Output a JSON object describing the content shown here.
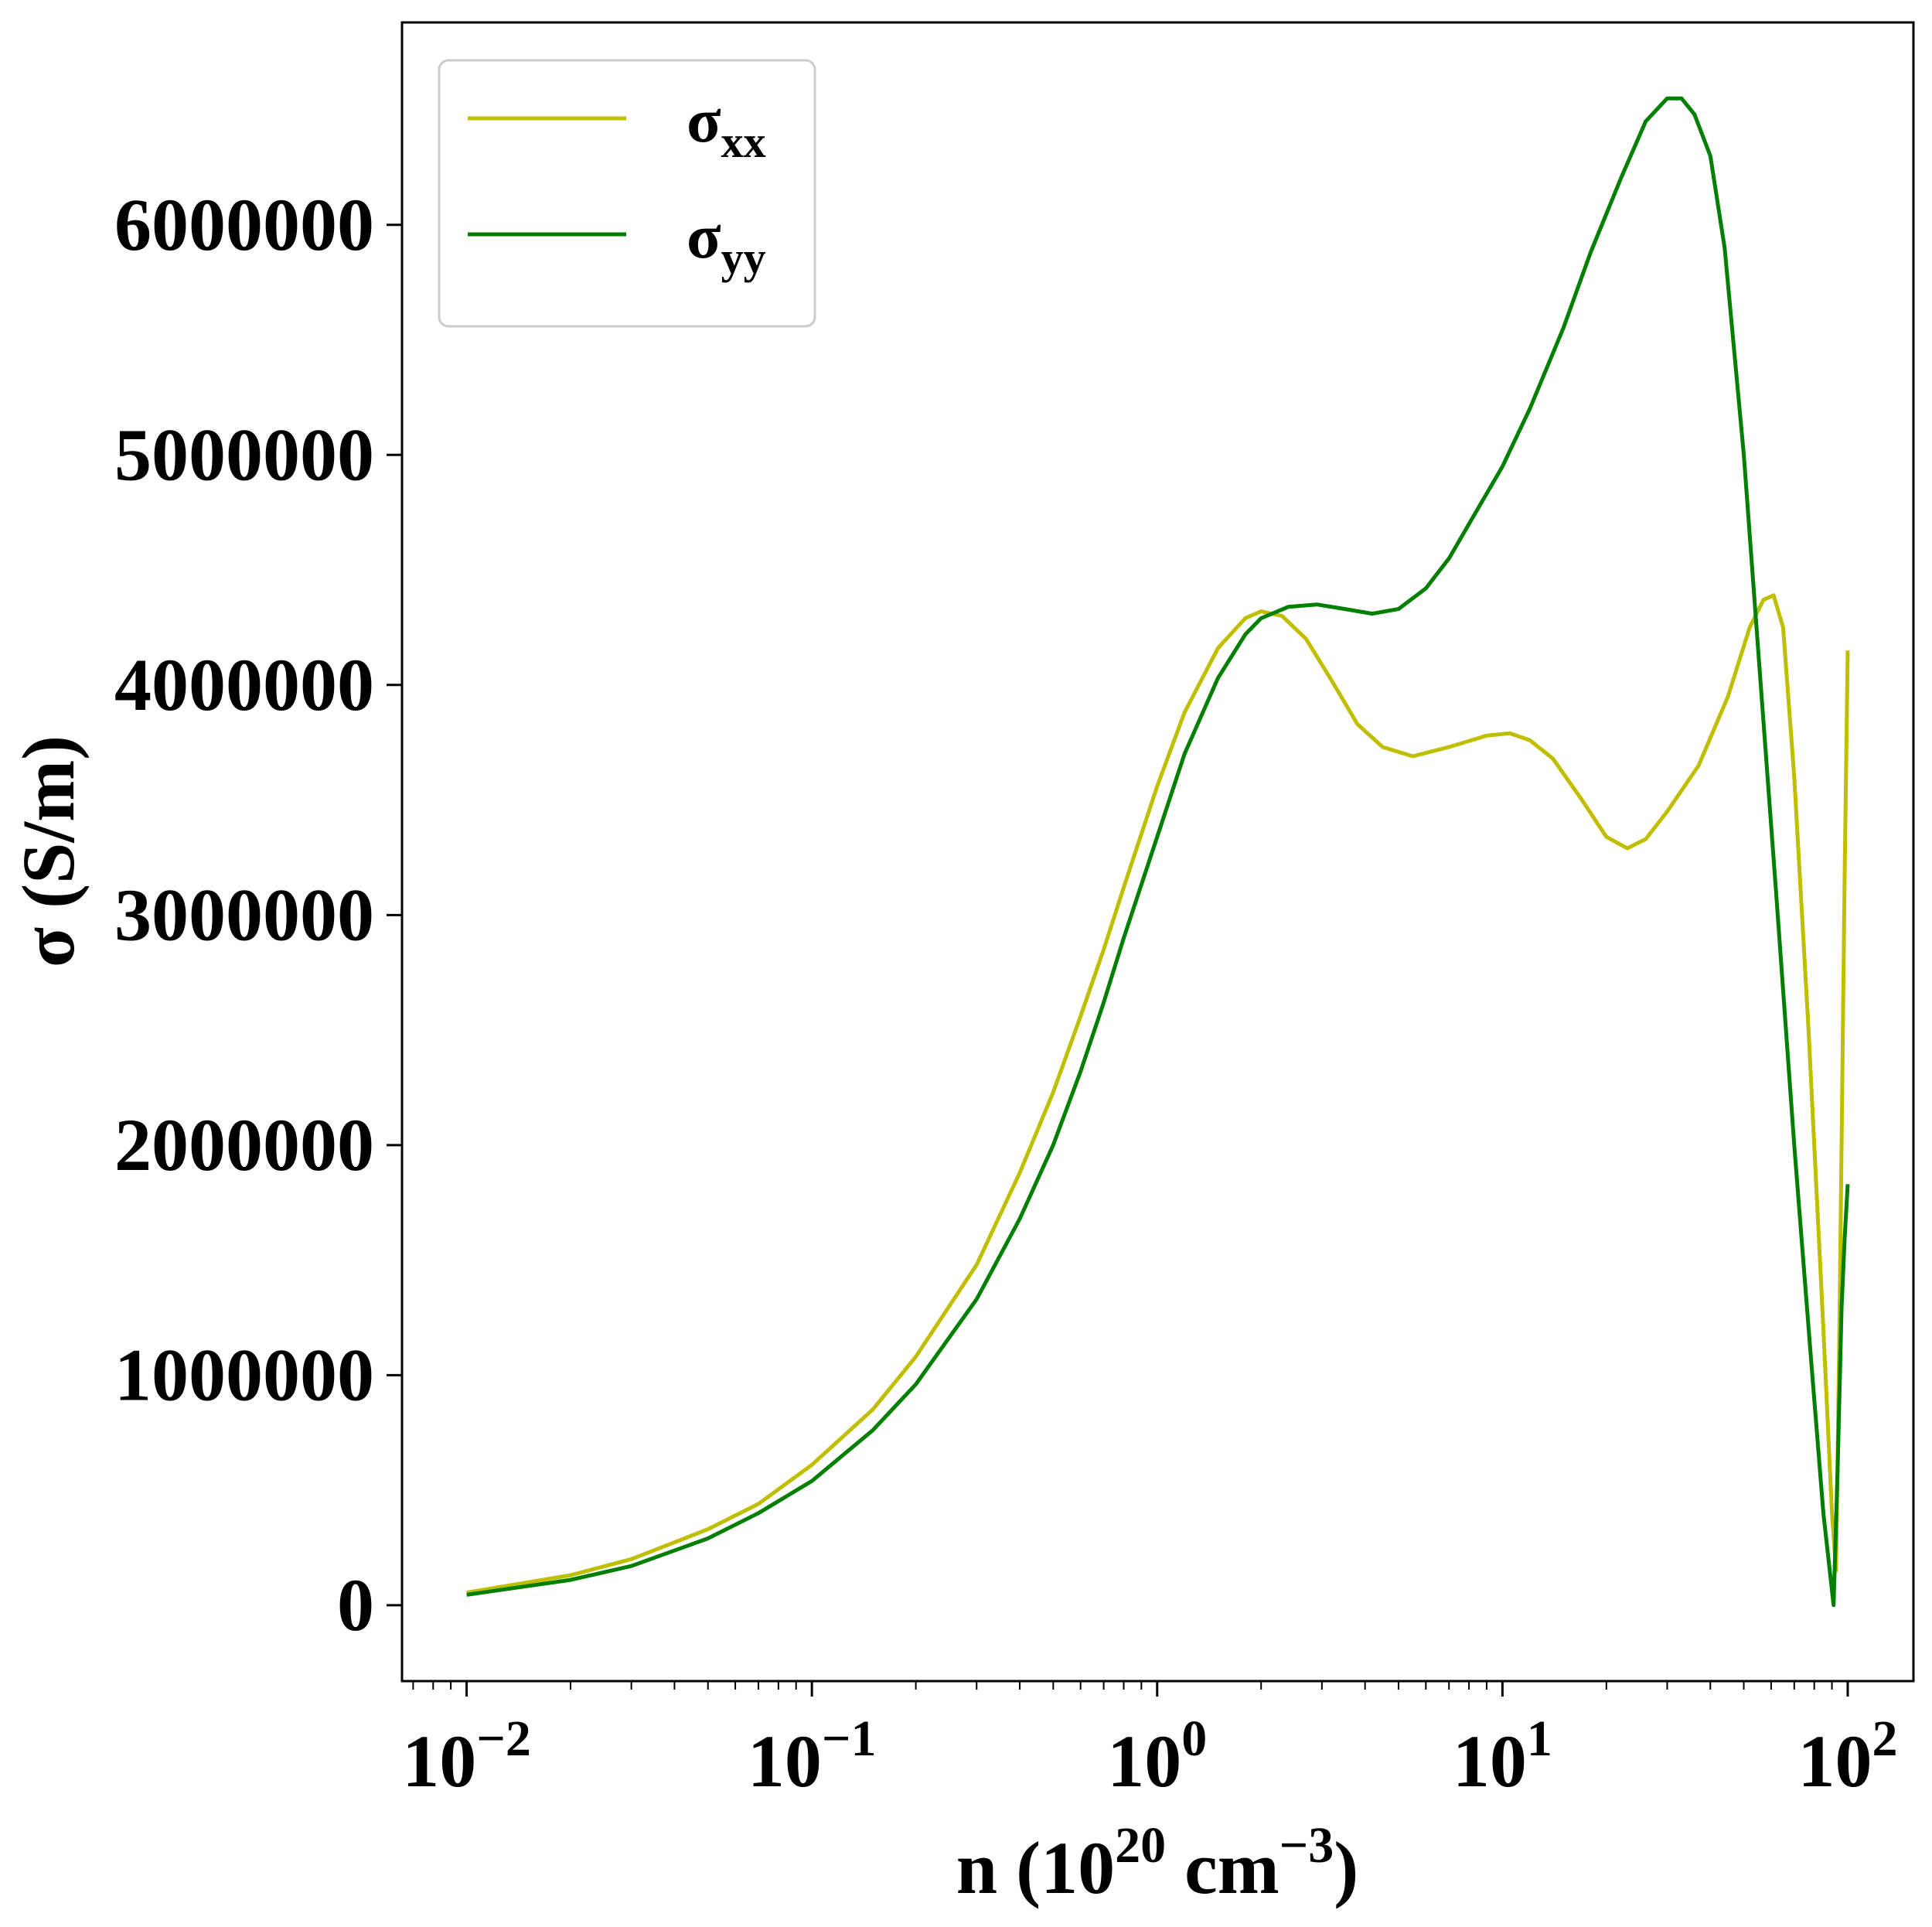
{
  "chart_data": {
    "type": "line",
    "xlabel": {
      "base": "n (10",
      "exp1": "20",
      "mid": " cm",
      "exp2": "−3",
      "end": ")"
    },
    "ylabel": "σ (S/m)",
    "x_scale": "log",
    "xlim": [
      0.0065,
      155
    ],
    "ylim": [
      -330000,
      6880000
    ],
    "x_ticks": [
      {
        "value": 0.01,
        "base": "10",
        "exp": "−2"
      },
      {
        "value": 0.1,
        "base": "10",
        "exp": "−1"
      },
      {
        "value": 1,
        "base": "10",
        "exp": "0"
      },
      {
        "value": 10,
        "base": "10",
        "exp": "1"
      },
      {
        "value": 100,
        "base": "10",
        "exp": "2"
      }
    ],
    "y_ticks": [
      {
        "value": 0,
        "label": "0"
      },
      {
        "value": 1000000,
        "label": "1000000"
      },
      {
        "value": 2000000,
        "label": "2000000"
      },
      {
        "value": 3000000,
        "label": "3000000"
      },
      {
        "value": 4000000,
        "label": "4000000"
      },
      {
        "value": 5000000,
        "label": "5000000"
      },
      {
        "value": 6000000,
        "label": "6000000"
      }
    ],
    "grid": false,
    "legend": {
      "position": "top-left",
      "entries": [
        {
          "base": "σ",
          "sub": "xx"
        },
        {
          "base": "σ",
          "sub": "yy"
        }
      ]
    },
    "series": [
      {
        "name": "σxx",
        "color": "#bfbf00",
        "points": [
          [
            0.01,
            55000
          ],
          [
            0.02,
            130000
          ],
          [
            0.03,
            200000
          ],
          [
            0.05,
            330000
          ],
          [
            0.07,
            440000
          ],
          [
            0.1,
            610000
          ],
          [
            0.15,
            850000
          ],
          [
            0.2,
            1080000
          ],
          [
            0.3,
            1480000
          ],
          [
            0.4,
            1880000
          ],
          [
            0.5,
            2230000
          ],
          [
            0.6,
            2560000
          ],
          [
            0.7,
            2850000
          ],
          [
            0.8,
            3120000
          ],
          [
            1.0,
            3560000
          ],
          [
            1.2,
            3880000
          ],
          [
            1.5,
            4160000
          ],
          [
            1.8,
            4290000
          ],
          [
            2.0,
            4320000
          ],
          [
            2.3,
            4300000
          ],
          [
            2.7,
            4200000
          ],
          [
            3.2,
            4020000
          ],
          [
            3.8,
            3830000
          ],
          [
            4.5,
            3730000
          ],
          [
            5.5,
            3690000
          ],
          [
            7.0,
            3730000
          ],
          [
            9.0,
            3780000
          ],
          [
            10.5,
            3790000
          ],
          [
            12.0,
            3760000
          ],
          [
            14.0,
            3680000
          ],
          [
            17.0,
            3500000
          ],
          [
            20.0,
            3340000
          ],
          [
            23.0,
            3290000
          ],
          [
            26.0,
            3330000
          ],
          [
            30.0,
            3450000
          ],
          [
            37.0,
            3650000
          ],
          [
            45.0,
            3950000
          ],
          [
            52.0,
            4250000
          ],
          [
            57.0,
            4370000
          ],
          [
            61.0,
            4390000
          ],
          [
            65.0,
            4250000
          ],
          [
            70.0,
            3600000
          ],
          [
            77.0,
            2500000
          ],
          [
            85.0,
            1200000
          ],
          [
            90.0,
            400000
          ],
          [
            92.5,
            150000
          ],
          [
            95.0,
            1400000
          ],
          [
            98.0,
            3200000
          ],
          [
            100.0,
            4150000
          ]
        ]
      },
      {
        "name": "σyy",
        "color": "#007f00",
        "points": [
          [
            0.01,
            45000
          ],
          [
            0.02,
            110000
          ],
          [
            0.03,
            170000
          ],
          [
            0.05,
            290000
          ],
          [
            0.07,
            400000
          ],
          [
            0.1,
            540000
          ],
          [
            0.15,
            760000
          ],
          [
            0.2,
            960000
          ],
          [
            0.3,
            1330000
          ],
          [
            0.4,
            1680000
          ],
          [
            0.5,
            2000000
          ],
          [
            0.6,
            2320000
          ],
          [
            0.7,
            2620000
          ],
          [
            0.8,
            2900000
          ],
          [
            1.0,
            3340000
          ],
          [
            1.2,
            3700000
          ],
          [
            1.5,
            4030000
          ],
          [
            1.8,
            4220000
          ],
          [
            2.0,
            4290000
          ],
          [
            2.4,
            4340000
          ],
          [
            2.9,
            4350000
          ],
          [
            3.5,
            4330000
          ],
          [
            4.2,
            4310000
          ],
          [
            5.0,
            4330000
          ],
          [
            6.0,
            4420000
          ],
          [
            7.0,
            4550000
          ],
          [
            8.0,
            4700000
          ],
          [
            10.0,
            4950000
          ],
          [
            12.0,
            5200000
          ],
          [
            15.0,
            5550000
          ],
          [
            18.0,
            5880000
          ],
          [
            22.0,
            6200000
          ],
          [
            26.0,
            6450000
          ],
          [
            30.0,
            6550000
          ],
          [
            33.0,
            6550000
          ],
          [
            36.0,
            6480000
          ],
          [
            40.0,
            6300000
          ],
          [
            44.0,
            5900000
          ],
          [
            50.0,
            5000000
          ],
          [
            56.0,
            4000000
          ],
          [
            62.0,
            3100000
          ],
          [
            70.0,
            2000000
          ],
          [
            78.0,
            1100000
          ],
          [
            85.0,
            400000
          ],
          [
            91.0,
            0
          ],
          [
            93.5,
            600000
          ],
          [
            96.0,
            1300000
          ],
          [
            98.0,
            1600000
          ],
          [
            100.0,
            1830000
          ]
        ]
      }
    ]
  }
}
